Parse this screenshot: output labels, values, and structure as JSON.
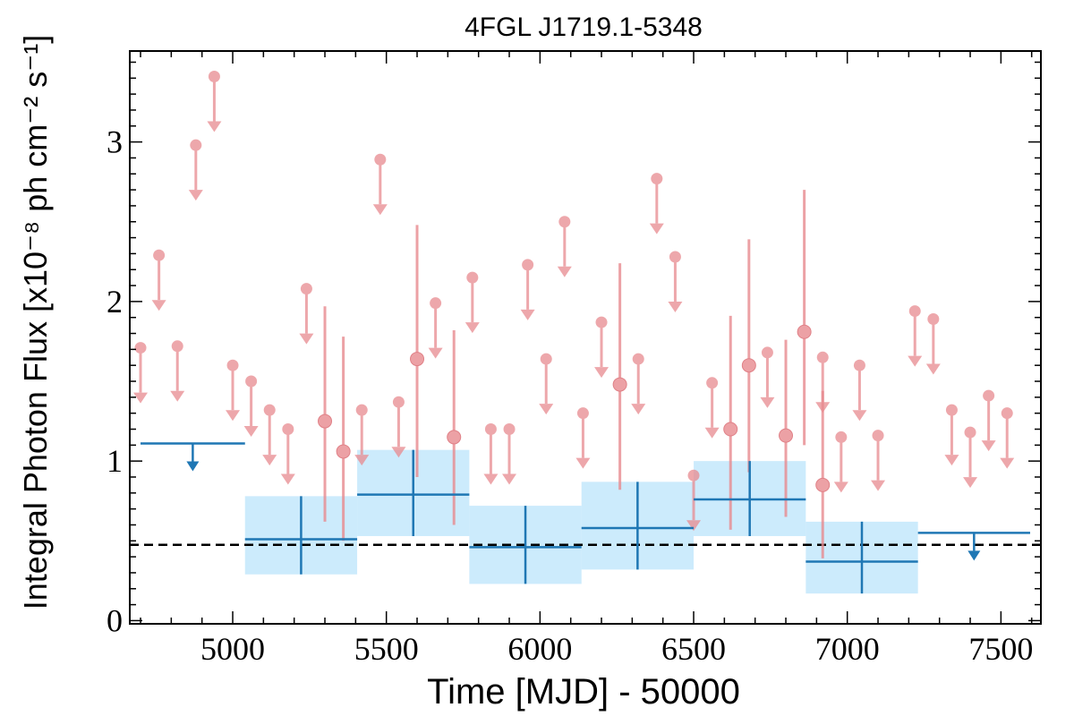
{
  "chart_data": {
    "type": "scatter",
    "title": "4FGL J1719.1-5348",
    "xlabel": "Time [MJD] - 50000",
    "ylabel": "Integral Photon Flux [x10⁻⁸ ph cm⁻² s⁻¹]",
    "xlim": [
      4665,
      7630
    ],
    "ylim": [
      -0.02,
      3.57
    ],
    "xticks": [
      5000,
      5500,
      6000,
      6500,
      7000,
      7500
    ],
    "yticks": [
      0,
      1,
      2,
      3
    ],
    "reference_line": {
      "y": 0.475,
      "style": "dashed"
    },
    "colors": {
      "short_bins": "#e88a8f",
      "long_bins": "#1f77b4",
      "band": "#bfe6fb",
      "reference": "#000000"
    },
    "short_bin_upper_limits": [
      {
        "x": 4700,
        "y": 1.71
      },
      {
        "x": 4760,
        "y": 2.29
      },
      {
        "x": 4820,
        "y": 1.72
      },
      {
        "x": 4880,
        "y": 2.98
      },
      {
        "x": 4940,
        "y": 3.41
      },
      {
        "x": 5000,
        "y": 1.6
      },
      {
        "x": 5060,
        "y": 1.5
      },
      {
        "x": 5120,
        "y": 1.32
      },
      {
        "x": 5180,
        "y": 1.2
      },
      {
        "x": 5240,
        "y": 2.08
      },
      {
        "x": 5420,
        "y": 1.32
      },
      {
        "x": 5480,
        "y": 2.89
      },
      {
        "x": 5540,
        "y": 1.37
      },
      {
        "x": 5660,
        "y": 1.99
      },
      {
        "x": 5780,
        "y": 2.15
      },
      {
        "x": 5840,
        "y": 1.2
      },
      {
        "x": 5900,
        "y": 1.2
      },
      {
        "x": 5960,
        "y": 2.23
      },
      {
        "x": 6020,
        "y": 1.64
      },
      {
        "x": 6080,
        "y": 2.5
      },
      {
        "x": 6140,
        "y": 1.3
      },
      {
        "x": 6200,
        "y": 1.87
      },
      {
        "x": 6320,
        "y": 1.64
      },
      {
        "x": 6380,
        "y": 2.77
      },
      {
        "x": 6440,
        "y": 2.28
      },
      {
        "x": 6500,
        "y": 0.91
      },
      {
        "x": 6560,
        "y": 1.49
      },
      {
        "x": 6740,
        "y": 1.68
      },
      {
        "x": 6920,
        "y": 1.65
      },
      {
        "x": 6980,
        "y": 1.15
      },
      {
        "x": 7040,
        "y": 1.6
      },
      {
        "x": 7100,
        "y": 1.16
      },
      {
        "x": 7220,
        "y": 1.94
      },
      {
        "x": 7280,
        "y": 1.89
      },
      {
        "x": 7340,
        "y": 1.32
      },
      {
        "x": 7400,
        "y": 1.18
      },
      {
        "x": 7460,
        "y": 1.41
      },
      {
        "x": 7520,
        "y": 1.3
      }
    ],
    "short_bin_detections": [
      {
        "x": 5300,
        "y": 1.25,
        "y_low": 0.62,
        "y_high": 1.97
      },
      {
        "x": 5360,
        "y": 1.06,
        "y_low": 0.5,
        "y_high": 1.78
      },
      {
        "x": 5600,
        "y": 1.64,
        "y_low": 0.9,
        "y_high": 2.48
      },
      {
        "x": 5720,
        "y": 1.15,
        "y_low": 0.6,
        "y_high": 1.82
      },
      {
        "x": 6260,
        "y": 1.48,
        "y_low": 0.82,
        "y_high": 2.24
      },
      {
        "x": 6620,
        "y": 1.2,
        "y_low": 0.57,
        "y_high": 1.91
      },
      {
        "x": 6680,
        "y": 1.6,
        "y_low": 0.93,
        "y_high": 2.39
      },
      {
        "x": 6800,
        "y": 1.16,
        "y_low": 0.65,
        "y_high": 1.76
      },
      {
        "x": 6860,
        "y": 1.81,
        "y_low": 1.1,
        "y_high": 2.7
      },
      {
        "x": 6920,
        "y": 0.85,
        "y_low": 0.39,
        "y_high": 1.44
      }
    ],
    "long_bin_detections": [
      {
        "x0": 5040,
        "x1": 5405,
        "y": 0.51,
        "y_low": 0.29,
        "y_high": 0.78
      },
      {
        "x0": 5405,
        "x1": 5770,
        "y": 0.79,
        "y_low": 0.53,
        "y_high": 1.07
      },
      {
        "x0": 5770,
        "x1": 6135,
        "y": 0.46,
        "y_low": 0.23,
        "y_high": 0.72
      },
      {
        "x0": 6135,
        "x1": 6500,
        "y": 0.58,
        "y_low": 0.32,
        "y_high": 0.87
      },
      {
        "x0": 6500,
        "x1": 6865,
        "y": 0.76,
        "y_low": 0.53,
        "y_high": 1.0
      },
      {
        "x0": 6865,
        "x1": 7230,
        "y": 0.37,
        "y_low": 0.17,
        "y_high": 0.62
      }
    ],
    "long_bin_upper_limits": [
      {
        "x0": 4700,
        "x1": 5040,
        "y": 1.11
      },
      {
        "x0": 7230,
        "x1": 7595,
        "y": 0.55
      }
    ]
  }
}
